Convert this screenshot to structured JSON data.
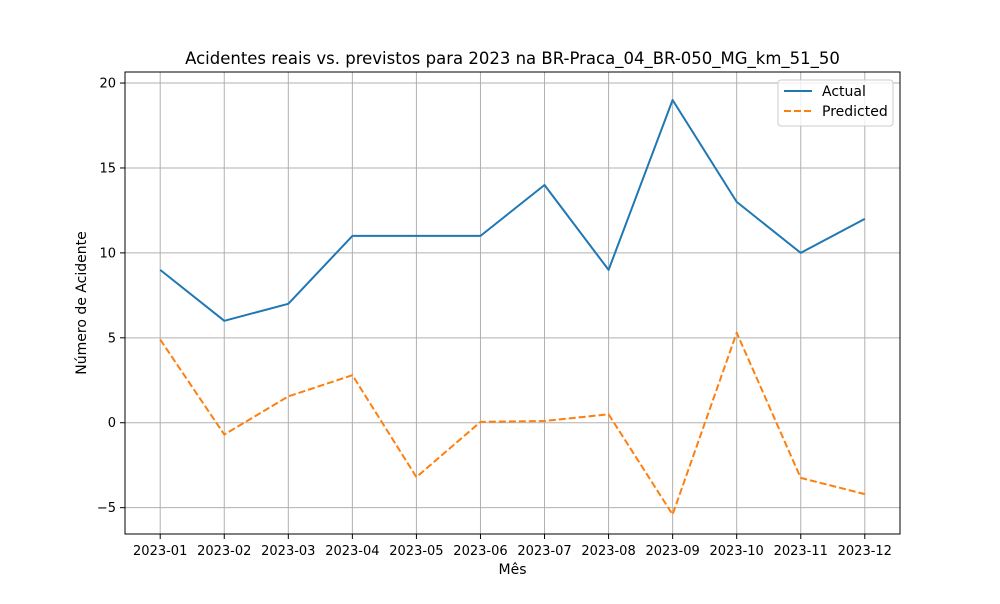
{
  "chart_data": {
    "type": "line",
    "title": "Acidentes reais vs. previstos para 2023 na BR-Praca_04_BR-050_MG_km_51_50",
    "xlabel": "Mês",
    "ylabel": "Número de Acidente",
    "categories": [
      "2023-01",
      "2023-02",
      "2023-03",
      "2023-04",
      "2023-05",
      "2023-06",
      "2023-07",
      "2023-08",
      "2023-09",
      "2023-10",
      "2023-11",
      "2023-12"
    ],
    "ylim": [
      -6.55,
      20.65
    ],
    "yticks": [
      -5,
      0,
      5,
      10,
      15,
      20
    ],
    "ytick_labels": [
      "−5",
      "0",
      "5",
      "10",
      "15",
      "20"
    ],
    "grid": true,
    "legend_position": "top-right",
    "series": [
      {
        "name": "Actual",
        "color": "#1f77b4",
        "style": "solid",
        "values": [
          9,
          6,
          7,
          11,
          11,
          11,
          14,
          9,
          19,
          13,
          10,
          12
        ]
      },
      {
        "name": "Predicted",
        "color": "#ff7f0e",
        "style": "dashed",
        "values": [
          4.9,
          -0.7,
          1.55,
          2.8,
          -3.2,
          0.05,
          0.1,
          0.5,
          -5.4,
          5.3,
          -3.25,
          -4.2
        ]
      }
    ]
  }
}
